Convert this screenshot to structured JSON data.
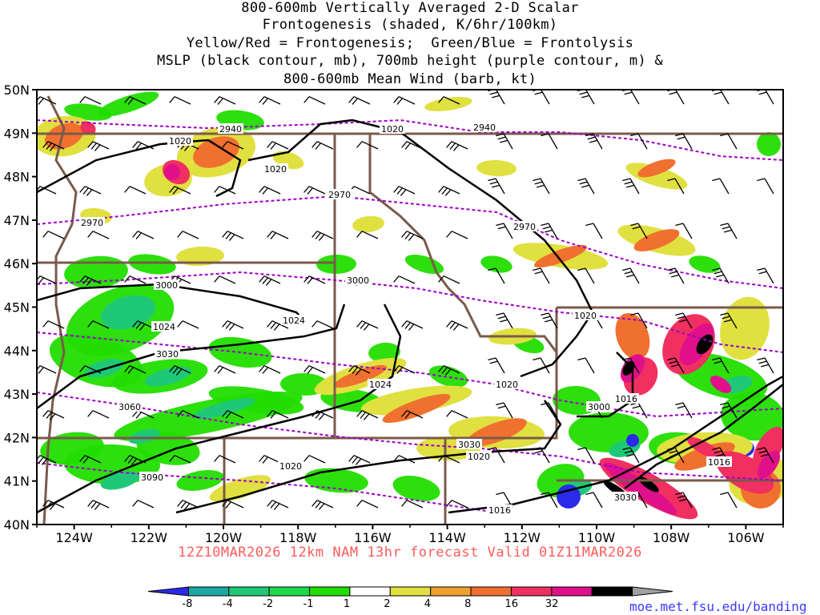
{
  "title_lines": [
    "800-600mb Vertically Averaged 2-D Scalar",
    "Frontogenesis (shaded, K/6hr/100km)",
    "Yellow/Red = Frontogenesis;  Green/Blue = Frontolysis",
    "MSLP (black contour, mb), 700mb height (purple contour, m) &",
    "800-600mb Mean Wind (barb, kt)"
  ],
  "footer": "12Z10MAR2026 12km NAM 13hr forecast Valid 01Z11MAR2026",
  "credit": "moe.met.fsu.edu/banding",
  "lat_labels": [
    "50N",
    "49N",
    "48N",
    "47N",
    "46N",
    "45N",
    "44N",
    "43N",
    "42N",
    "41N",
    "40N"
  ],
  "lon_labels": [
    "124W",
    "122W",
    "120W",
    "118W",
    "116W",
    "114W",
    "112W",
    "110W",
    "108W",
    "106W"
  ],
  "map_extent": {
    "lon_min": -125,
    "lon_max": -105,
    "lat_min": 40,
    "lat_max": 50
  },
  "colorbar": {
    "levels": [
      "-8",
      "-4",
      "-2",
      "-1",
      "1",
      "2",
      "4",
      "8",
      "16",
      "32"
    ],
    "colors": [
      "#2a2ae8",
      "#1aa8a0",
      "#1fc877",
      "#1ed84a",
      "#22dd00",
      "#ffffff",
      "#e0e040",
      "#f0a030",
      "#f07030",
      "#f03060",
      "#e0108a",
      "#000000",
      "#a0a0a0"
    ]
  },
  "contour_labels": {
    "mslp": [
      "1020",
      "1020",
      "1020",
      "1024",
      "1024",
      "1024",
      "1020",
      "1020",
      "1016",
      "1016",
      "1020",
      "1016",
      "1020"
    ],
    "height": [
      "2940",
      "2940",
      "2970",
      "2970",
      "2970",
      "3000",
      "3000",
      "3030",
      "3060",
      "3090",
      "3000",
      "3030",
      "3030"
    ]
  }
}
